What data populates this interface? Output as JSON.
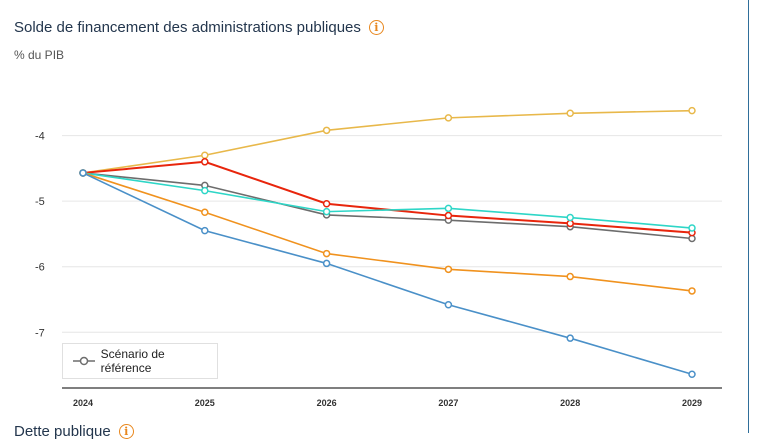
{
  "header": {
    "title": "Solde de financement des administrations publiques",
    "info_glyph": "i",
    "unit": "% du PIB"
  },
  "clipped_top_ticks": [
    "2024",
    "2025",
    "2026",
    "2027",
    "2028",
    "2029"
  ],
  "next_section": {
    "title": "Dette publique",
    "info_glyph": "i"
  },
  "legend": {
    "label": "Scénario de référence",
    "color": "#6d6d6d"
  },
  "chart_data": {
    "type": "line",
    "title": "Solde de financement des administrations publiques",
    "ylabel": "% du PIB",
    "xlabel": "",
    "categories": [
      "2024",
      "2025",
      "2026",
      "2027",
      "2028",
      "2029"
    ],
    "ylim": [
      -7.85,
      -3.0
    ],
    "yticks": [
      -4,
      -5,
      -6,
      -7
    ],
    "ytick_labels": [
      "-4",
      "-5",
      "-6",
      "-7"
    ],
    "grid": true,
    "series": [
      {
        "name": "Scénario de référence",
        "color": "#6d6d6d",
        "values": [
          -4.57,
          -4.76,
          -5.21,
          -5.29,
          -5.39,
          -5.57
        ]
      },
      {
        "name": "",
        "color": "#e8b84a",
        "values": [
          -4.57,
          -4.3,
          -3.92,
          -3.73,
          -3.66,
          -3.62
        ]
      },
      {
        "name": "",
        "color": "#e8250c",
        "values": [
          -4.57,
          -4.4,
          -5.04,
          -5.22,
          -5.34,
          -5.48
        ]
      },
      {
        "name": "",
        "color": "#2ed6c7",
        "values": [
          -4.57,
          -4.84,
          -5.16,
          -5.11,
          -5.25,
          -5.41
        ]
      },
      {
        "name": "",
        "color": "#f0921e",
        "values": [
          -4.57,
          -5.17,
          -5.8,
          -6.04,
          -6.15,
          -6.37
        ]
      },
      {
        "name": "",
        "color": "#4a90c8",
        "values": [
          -4.57,
          -5.45,
          -5.95,
          -6.58,
          -7.09,
          -7.64
        ]
      }
    ]
  }
}
